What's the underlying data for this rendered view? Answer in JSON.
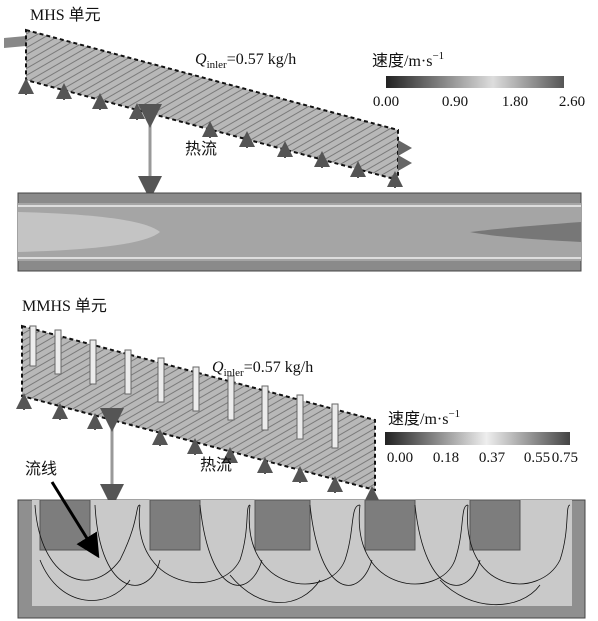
{
  "top": {
    "label": "MHS 单元",
    "flow": {
      "symbol": "Q",
      "subscript": "inler",
      "value": "=0.57 kg/h"
    },
    "colorbar": {
      "title": "速度/m·s",
      "superscript": "−1",
      "ticks": [
        "0.00",
        "0.90",
        "1.80",
        "2.60"
      ]
    },
    "heat": "热流"
  },
  "bottom": {
    "label": "MMHS 单元",
    "flow": {
      "symbol": "Q",
      "subscript": "inler",
      "value": "=0.57 kg/h"
    },
    "colorbar": {
      "title": "速度/m·s",
      "superscript": "−1",
      "ticks": [
        "0.00",
        "0.18",
        "0.37",
        "0.55",
        "0.75"
      ]
    },
    "heat": "热流",
    "streamline": "流线"
  }
}
